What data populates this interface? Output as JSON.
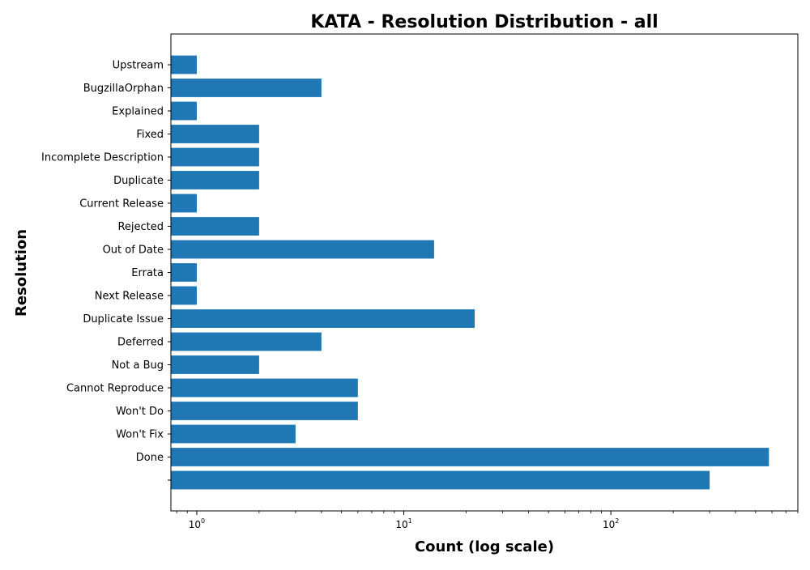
{
  "chart_data": {
    "type": "bar",
    "orientation": "horizontal",
    "title": "KATA - Resolution Distribution - all",
    "xlabel": "Count (log scale)",
    "ylabel": "Resolution",
    "xscale": "log",
    "xlim": [
      0.75,
      800
    ],
    "x_ticks": [
      {
        "base": "10",
        "exp": "0",
        "value": 1
      },
      {
        "base": "10",
        "exp": "1",
        "value": 10
      },
      {
        "base": "10",
        "exp": "2",
        "value": 100
      }
    ],
    "bar_color": "#1f77b4",
    "grid": false,
    "categories": [
      "Upstream",
      "BugzillaOrphan",
      "Explained",
      "Fixed",
      "Incomplete Description",
      "Duplicate",
      "Current Release",
      "Rejected",
      "Out of Date",
      "Errata",
      "Next Release",
      "Duplicate Issue",
      "Deferred",
      "Not a Bug",
      "Cannot Reproduce",
      "Won't Do",
      "Won't Fix",
      "Done",
      ""
    ],
    "values": [
      1,
      4,
      1,
      2,
      2,
      2,
      1,
      2,
      14,
      1,
      1,
      22,
      4,
      2,
      6,
      6,
      3,
      580,
      300
    ]
  }
}
